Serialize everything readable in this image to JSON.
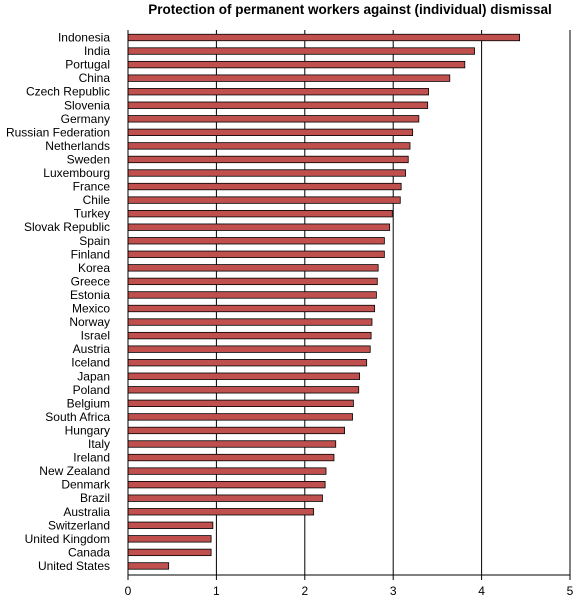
{
  "chart_data": {
    "type": "bar",
    "orientation": "horizontal",
    "title": "Protection of permanent workers against (individual) dismissal",
    "xlabel": "",
    "ylabel": "",
    "xlim": [
      0,
      5
    ],
    "xticks": [
      "0",
      "1",
      "2",
      "3",
      "4",
      "5"
    ],
    "grid": "vertical lines at each integer",
    "bar_color": "#c0504d",
    "bar_stroke": "#000000",
    "categories": [
      "Indonesia",
      "India",
      "Portugal",
      "China",
      "Czech Republic",
      "Slovenia",
      "Germany",
      "Russian Federation",
      "Netherlands",
      "Sweden",
      "Luxembourg",
      "France",
      "Chile",
      "Turkey",
      "Slovak Republic",
      "Spain",
      "Finland",
      "Korea",
      "Greece",
      "Estonia",
      "Mexico",
      "Norway",
      "Israel",
      "Austria",
      "Iceland",
      "Japan",
      "Poland",
      "Belgium",
      "South Africa",
      "Hungary",
      "Italy",
      "Ireland",
      "New Zealand",
      "Denmark",
      "Brazil",
      "Australia",
      "Switzerland",
      "United Kingdom",
      "Canada",
      "United States"
    ],
    "values": [
      4.43,
      3.92,
      3.81,
      3.64,
      3.4,
      3.39,
      3.29,
      3.22,
      3.19,
      3.17,
      3.14,
      3.09,
      3.08,
      2.99,
      2.96,
      2.9,
      2.9,
      2.83,
      2.82,
      2.81,
      2.79,
      2.76,
      2.75,
      2.74,
      2.7,
      2.62,
      2.61,
      2.55,
      2.54,
      2.45,
      2.35,
      2.33,
      2.24,
      2.23,
      2.2,
      2.1,
      0.96,
      0.94,
      0.94,
      0.46
    ]
  }
}
